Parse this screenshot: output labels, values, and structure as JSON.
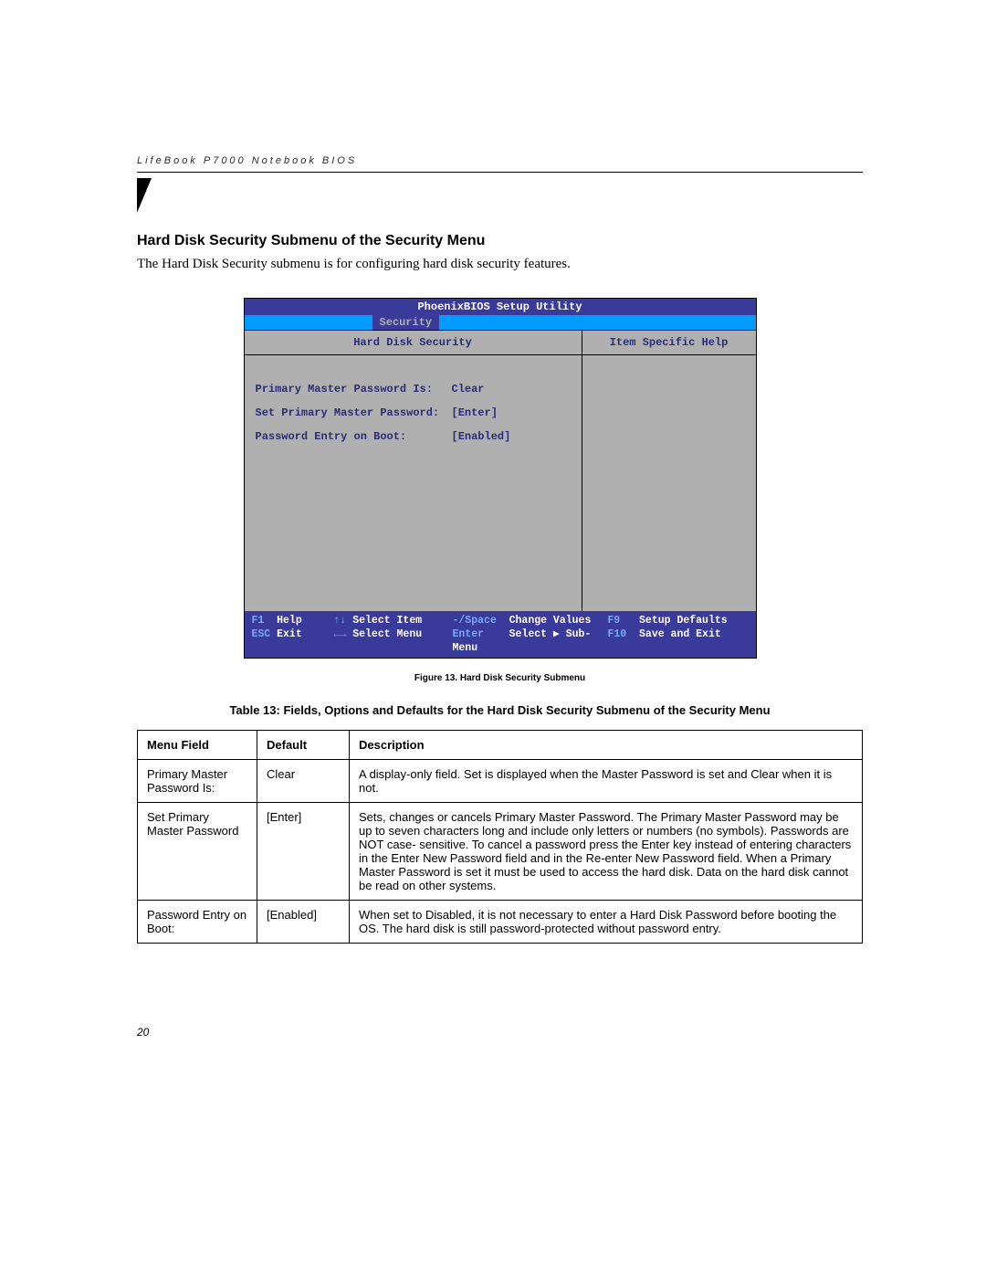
{
  "header": {
    "running_head": "LifeBook P7000 Notebook BIOS"
  },
  "section": {
    "title": "Hard Disk Security Submenu of the Security Menu",
    "intro": "The Hard Disk Security submenu is for configuring hard disk security features."
  },
  "bios": {
    "title": "PhoenixBIOS Setup Utility",
    "tab": "Security",
    "left_head": "Hard Disk Security",
    "right_head": "Item Specific Help",
    "rows": [
      {
        "label": "Primary Master Password Is:",
        "value": "Clear"
      },
      {
        "label": "Set Primary Master Password:",
        "value": "[Enter]"
      },
      {
        "label": "Password Entry on Boot:",
        "value": "[Enabled]"
      }
    ],
    "footer": {
      "r1": {
        "k1": "F1",
        "t1": "Help",
        "k2": "↑↓",
        "t2": "Select Item",
        "k3": "-/Space",
        "t3": "Change Values",
        "k4": "F9",
        "t4": "Setup Defaults"
      },
      "r2": {
        "k1": "ESC",
        "t1": "Exit",
        "k2": "←→",
        "t2": "Select Menu",
        "k3": "Enter",
        "t3": "Select ▶ Sub-Menu",
        "k4": "F10",
        "t4": "Save and Exit"
      }
    }
  },
  "figure_caption": "Figure 13.   Hard Disk Security Submenu",
  "table_caption": "Table 13: Fields, Options and Defaults for the Hard Disk Security Submenu of the Security Menu",
  "table": {
    "headers": {
      "field": "Menu Field",
      "default": "Default",
      "desc": "Description"
    },
    "rows": [
      {
        "field": "Primary Master Password Is:",
        "default": "Clear",
        "desc": "A display-only field. Set is displayed when the Master Password is set and Clear when it is not."
      },
      {
        "field": "Set Primary Master Password",
        "default": "[Enter]",
        "desc": "Sets, changes or cancels Primary Master Password. The Primary Master Password may be up to seven characters long and include only letters or numbers (no symbols). Passwords are NOT case- sensitive. To cancel a password press the Enter key instead of entering characters in the Enter New Password field and in the Re-enter New Password field. When a Primary Master Password is set it must be used to access the hard disk. Data on the hard disk cannot be read on other systems."
      },
      {
        "field": "Password Entry on Boot:",
        "default": "[Enabled]",
        "desc": "When set to Disabled, it is not necessary to enter a Hard Disk Password before booting the OS. The hard disk is still password-protected without password entry."
      }
    ]
  },
  "page_number": "20"
}
